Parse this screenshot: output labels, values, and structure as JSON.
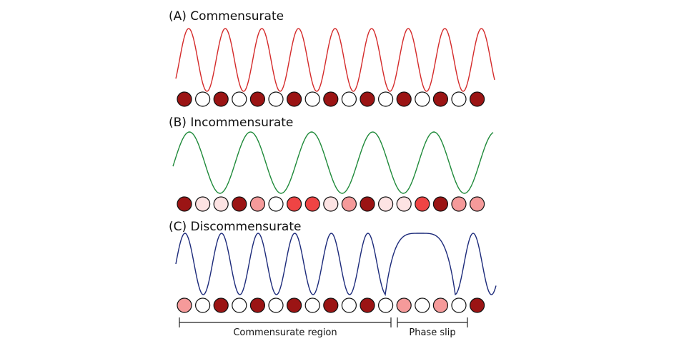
{
  "panels": [
    {
      "label": "(A) Commensurate"
    },
    {
      "label": "(B) Incommensurate"
    },
    {
      "label": "(C) Discommensurate"
    }
  ],
  "regions": [
    {
      "label": "Commensurate region"
    },
    {
      "label": "Phase slip"
    }
  ]
}
